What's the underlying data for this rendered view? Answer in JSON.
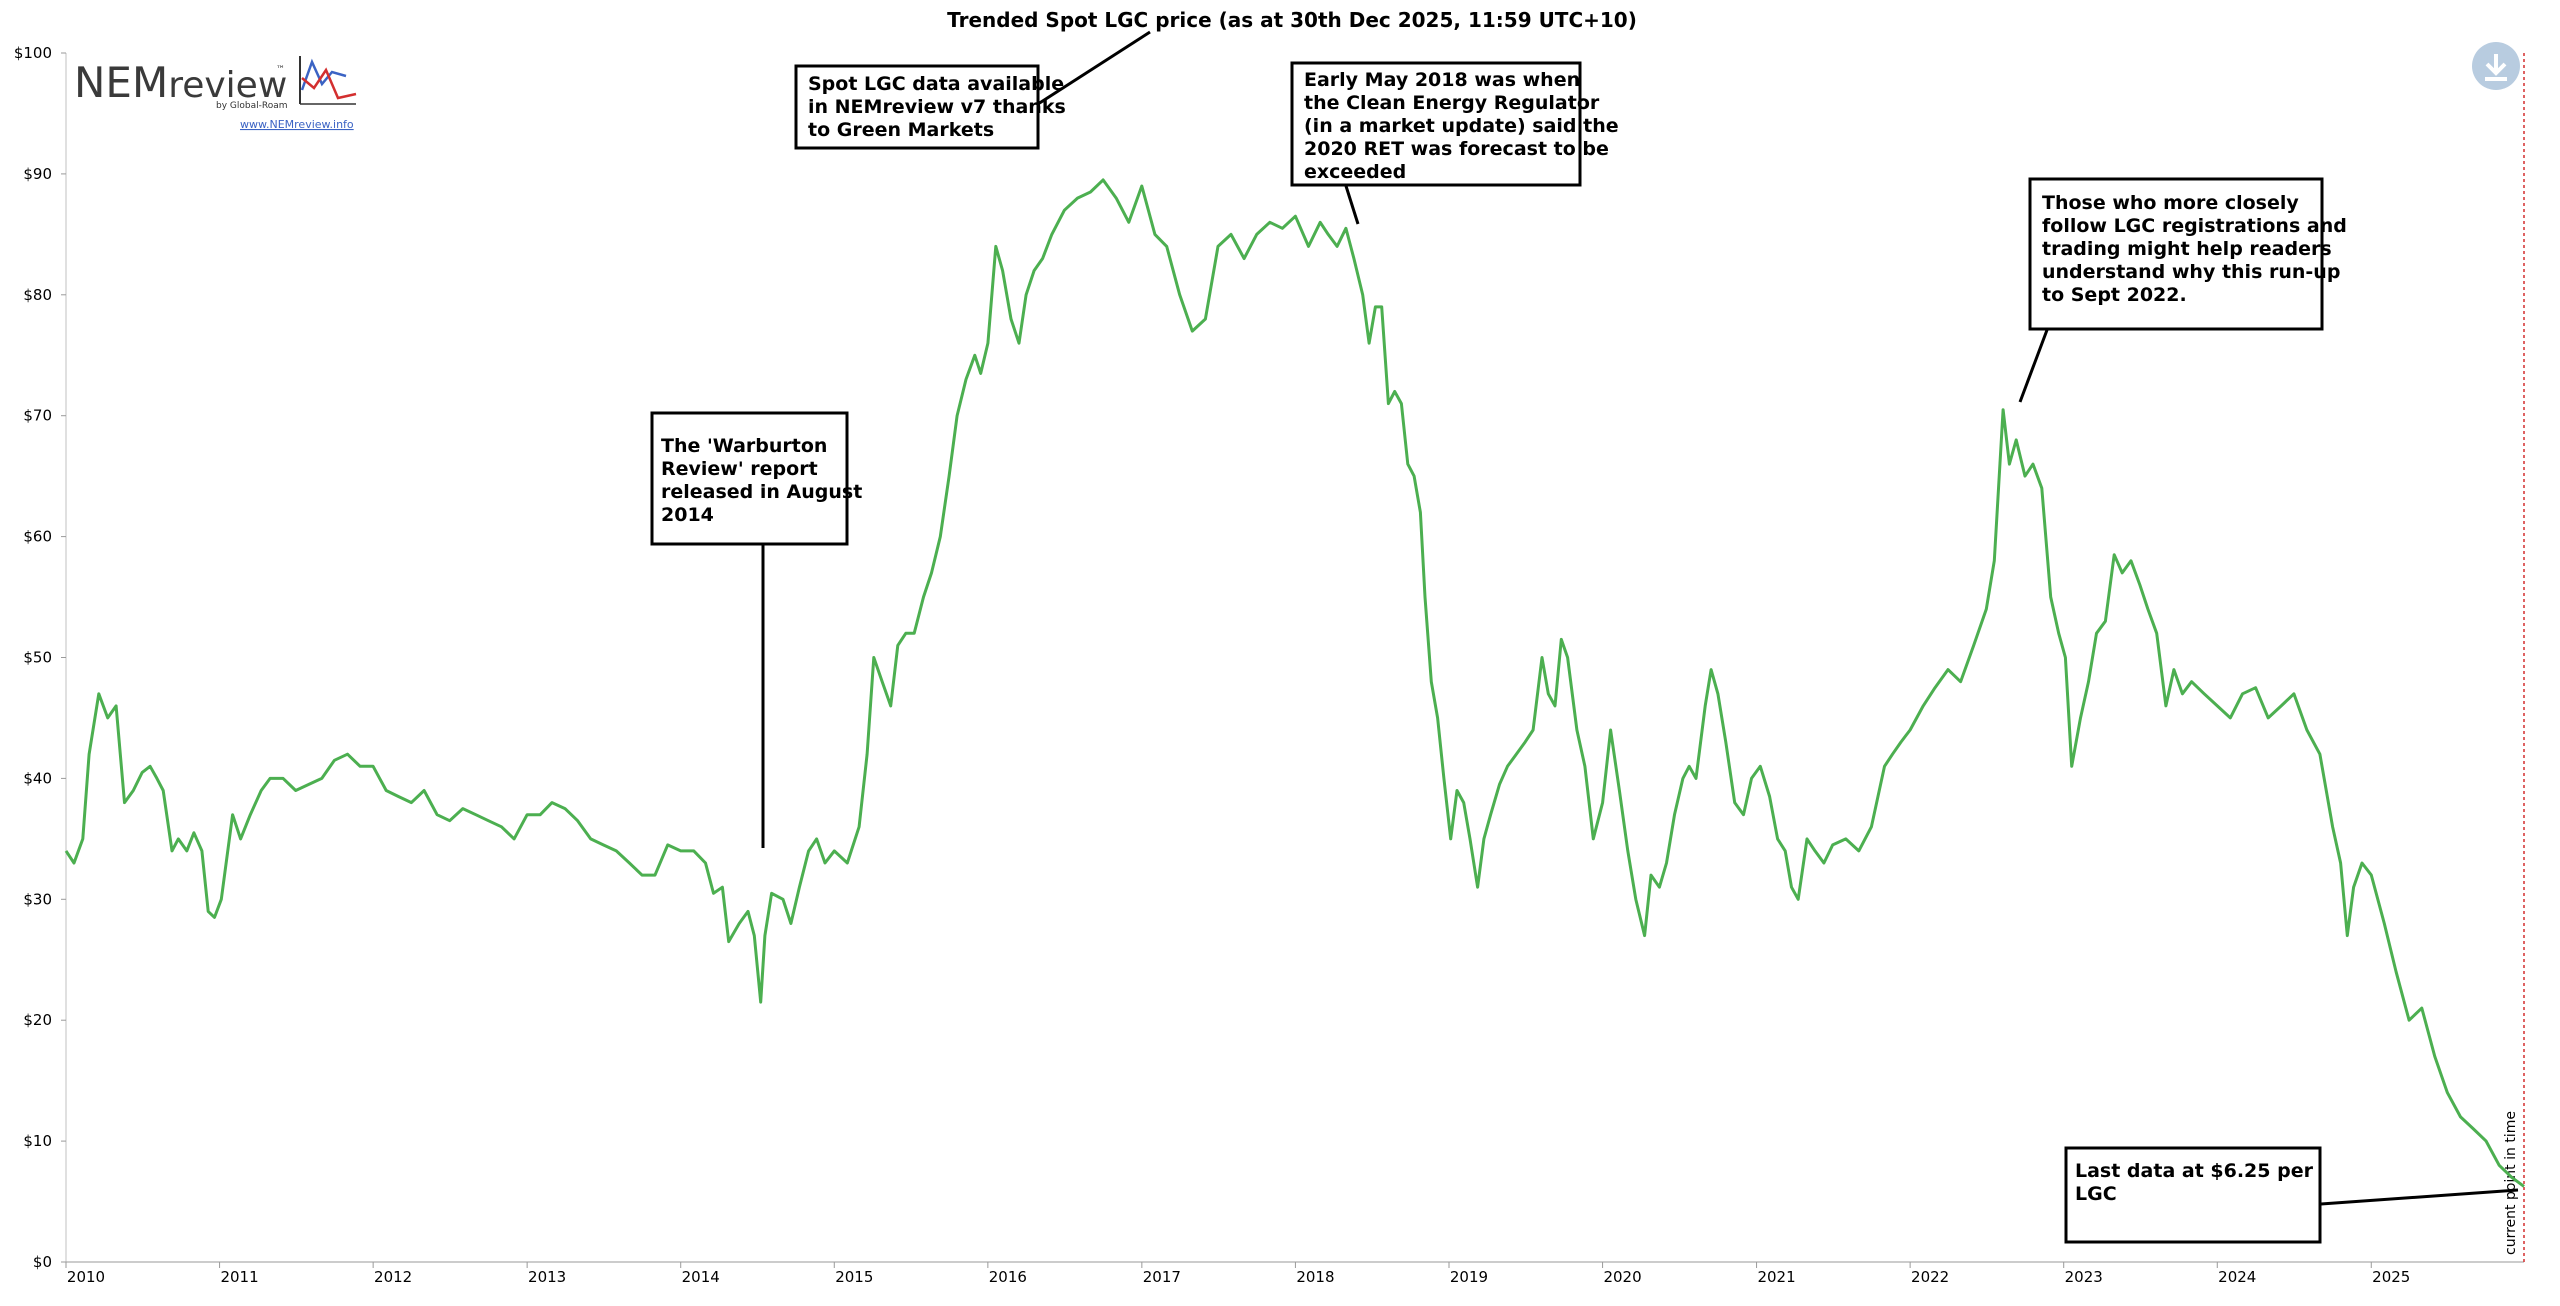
{
  "chart_data": {
    "type": "line",
    "title": "Trended Spot LGC price (as at 30th Dec 2025, 11:59 UTC+10)",
    "xlabel": "",
    "ylabel": "",
    "x_range": [
      "2010-01-01",
      "2025-12-30"
    ],
    "ylim": [
      0,
      100
    ],
    "y_ticks": [
      0,
      10,
      20,
      30,
      40,
      50,
      60,
      70,
      80,
      90,
      100
    ],
    "y_tick_labels": [
      "$0",
      "$10",
      "$20",
      "$30",
      "$40",
      "$50",
      "$60",
      "$70",
      "$80",
      "$90",
      "$100"
    ],
    "x_ticks": [
      "2010",
      "2011",
      "2012",
      "2013",
      "2014",
      "2015",
      "2016",
      "2017",
      "2018",
      "2019",
      "2020",
      "2021",
      "2022",
      "2023",
      "2024",
      "2025"
    ],
    "grid": false,
    "series": [
      {
        "color": "#4caf50",
        "points": [
          [
            "2010-01-01",
            34
          ],
          [
            "2010-01-20",
            33
          ],
          [
            "2010-02-10",
            35
          ],
          [
            "2010-02-25",
            42
          ],
          [
            "2010-03-20",
            47
          ],
          [
            "2010-04-10",
            45
          ],
          [
            "2010-04-30",
            46
          ],
          [
            "2010-05-20",
            38
          ],
          [
            "2010-06-10",
            39
          ],
          [
            "2010-07-01",
            40.5
          ],
          [
            "2010-07-20",
            41
          ],
          [
            "2010-08-05",
            40
          ],
          [
            "2010-08-20",
            39
          ],
          [
            "2010-09-10",
            34
          ],
          [
            "2010-09-25",
            35
          ],
          [
            "2010-10-15",
            34
          ],
          [
            "2010-11-01",
            35.5
          ],
          [
            "2010-11-20",
            34
          ],
          [
            "2010-12-05",
            29
          ],
          [
            "2010-12-20",
            28.5
          ],
          [
            "2011-01-05",
            30
          ],
          [
            "2011-02-01",
            37
          ],
          [
            "2011-02-20",
            35
          ],
          [
            "2011-03-15",
            37
          ],
          [
            "2011-04-10",
            39
          ],
          [
            "2011-05-01",
            40
          ],
          [
            "2011-06-01",
            40
          ],
          [
            "2011-07-01",
            39
          ],
          [
            "2011-08-01",
            39.5
          ],
          [
            "2011-09-01",
            40
          ],
          [
            "2011-10-01",
            41.5
          ],
          [
            "2011-11-01",
            42
          ],
          [
            "2011-12-01",
            41
          ],
          [
            "2012-01-01",
            41
          ],
          [
            "2012-02-01",
            39
          ],
          [
            "2012-03-01",
            38.5
          ],
          [
            "2012-04-01",
            38
          ],
          [
            "2012-05-01",
            39
          ],
          [
            "2012-06-01",
            37
          ],
          [
            "2012-07-01",
            36.5
          ],
          [
            "2012-08-01",
            37.5
          ],
          [
            "2012-09-01",
            37
          ],
          [
            "2012-10-01",
            36.5
          ],
          [
            "2012-11-01",
            36
          ],
          [
            "2012-12-01",
            35
          ],
          [
            "2013-01-01",
            37
          ],
          [
            "2013-02-01",
            37
          ],
          [
            "2013-03-01",
            38
          ],
          [
            "2013-04-01",
            37.5
          ],
          [
            "2013-05-01",
            36.5
          ],
          [
            "2013-06-01",
            35
          ],
          [
            "2013-07-01",
            34.5
          ],
          [
            "2013-08-01",
            34
          ],
          [
            "2013-09-01",
            33
          ],
          [
            "2013-10-01",
            32
          ],
          [
            "2013-11-01",
            32
          ],
          [
            "2013-12-01",
            34.5
          ],
          [
            "2014-01-01",
            34
          ],
          [
            "2014-02-01",
            34
          ],
          [
            "2014-03-01",
            33
          ],
          [
            "2014-03-20",
            30.5
          ],
          [
            "2014-04-10",
            31
          ],
          [
            "2014-04-25",
            26.5
          ],
          [
            "2014-05-20",
            28
          ],
          [
            "2014-06-10",
            29
          ],
          [
            "2014-06-25",
            27
          ],
          [
            "2014-07-10",
            21.5
          ],
          [
            "2014-07-20",
            27
          ],
          [
            "2014-08-05",
            30.5
          ],
          [
            "2014-09-01",
            30
          ],
          [
            "2014-09-20",
            28
          ],
          [
            "2014-10-10",
            31
          ],
          [
            "2014-11-01",
            34
          ],
          [
            "2014-11-20",
            35
          ],
          [
            "2014-12-10",
            33
          ],
          [
            "2015-01-01",
            34
          ],
          [
            "2015-02-01",
            33
          ],
          [
            "2015-03-01",
            36
          ],
          [
            "2015-03-20",
            42
          ],
          [
            "2015-04-05",
            50
          ],
          [
            "2015-04-25",
            48
          ],
          [
            "2015-05-15",
            46
          ],
          [
            "2015-06-01",
            51
          ],
          [
            "2015-06-20",
            52
          ],
          [
            "2015-07-10",
            52
          ],
          [
            "2015-08-01",
            55
          ],
          [
            "2015-08-20",
            57
          ],
          [
            "2015-09-10",
            60
          ],
          [
            "2015-10-01",
            65
          ],
          [
            "2015-10-20",
            70
          ],
          [
            "2015-11-10",
            73
          ],
          [
            "2015-12-01",
            75
          ],
          [
            "2015-12-15",
            73.5
          ],
          [
            "2016-01-01",
            76
          ],
          [
            "2016-01-20",
            84
          ],
          [
            "2016-02-05",
            82
          ],
          [
            "2016-02-25",
            78
          ],
          [
            "2016-03-15",
            76
          ],
          [
            "2016-04-01",
            80
          ],
          [
            "2016-04-20",
            82
          ],
          [
            "2016-05-10",
            83
          ],
          [
            "2016-06-01",
            85
          ],
          [
            "2016-07-01",
            87
          ],
          [
            "2016-08-01",
            88
          ],
          [
            "2016-09-01",
            88.5
          ],
          [
            "2016-10-01",
            89.5
          ],
          [
            "2016-11-01",
            88
          ],
          [
            "2016-12-01",
            86
          ],
          [
            "2017-01-01",
            89
          ],
          [
            "2017-02-01",
            85
          ],
          [
            "2017-03-01",
            84
          ],
          [
            "2017-04-01",
            80
          ],
          [
            "2017-05-01",
            77
          ],
          [
            "2017-06-01",
            78
          ],
          [
            "2017-07-01",
            84
          ],
          [
            "2017-08-01",
            85
          ],
          [
            "2017-09-01",
            83
          ],
          [
            "2017-10-01",
            85
          ],
          [
            "2017-11-01",
            86
          ],
          [
            "2017-12-01",
            85.5
          ],
          [
            "2018-01-01",
            86.5
          ],
          [
            "2018-02-01",
            84
          ],
          [
            "2018-03-01",
            86
          ],
          [
            "2018-03-20",
            85
          ],
          [
            "2018-04-10",
            84
          ],
          [
            "2018-05-01",
            85.5
          ],
          [
            "2018-05-20",
            83
          ],
          [
            "2018-06-10",
            80
          ],
          [
            "2018-06-25",
            76
          ],
          [
            "2018-07-10",
            79
          ],
          [
            "2018-07-25",
            79
          ],
          [
            "2018-08-10",
            71
          ],
          [
            "2018-08-25",
            72
          ],
          [
            "2018-09-10",
            71
          ],
          [
            "2018-09-25",
            66
          ],
          [
            "2018-10-10",
            65
          ],
          [
            "2018-10-25",
            62
          ],
          [
            "2018-11-05",
            55
          ],
          [
            "2018-11-20",
            48
          ],
          [
            "2018-12-05",
            45
          ],
          [
            "2018-12-20",
            40
          ],
          [
            "2019-01-05",
            35
          ],
          [
            "2019-01-20",
            39
          ],
          [
            "2019-02-05",
            38
          ],
          [
            "2019-02-20",
            35
          ],
          [
            "2019-03-10",
            31
          ],
          [
            "2019-03-25",
            35
          ],
          [
            "2019-04-10",
            37
          ],
          [
            "2019-05-01",
            39.5
          ],
          [
            "2019-05-20",
            41
          ],
          [
            "2019-06-10",
            42
          ],
          [
            "2019-07-01",
            43
          ],
          [
            "2019-07-20",
            44
          ],
          [
            "2019-08-10",
            50
          ],
          [
            "2019-08-25",
            47
          ],
          [
            "2019-09-10",
            46
          ],
          [
            "2019-09-25",
            51.5
          ],
          [
            "2019-10-10",
            50
          ],
          [
            "2019-11-01",
            44
          ],
          [
            "2019-11-20",
            41
          ],
          [
            "2019-12-10",
            35
          ],
          [
            "2020-01-01",
            38
          ],
          [
            "2020-01-20",
            44
          ],
          [
            "2020-02-10",
            39
          ],
          [
            "2020-03-01",
            34
          ],
          [
            "2020-03-20",
            30
          ],
          [
            "2020-04-10",
            27
          ],
          [
            "2020-04-25",
            32
          ],
          [
            "2020-05-15",
            31
          ],
          [
            "2020-06-01",
            33
          ],
          [
            "2020-06-20",
            37
          ],
          [
            "2020-07-10",
            40
          ],
          [
            "2020-07-25",
            41
          ],
          [
            "2020-08-10",
            40
          ],
          [
            "2020-09-01",
            46
          ],
          [
            "2020-09-15",
            49
          ],
          [
            "2020-10-01",
            47
          ],
          [
            "2020-10-20",
            43
          ],
          [
            "2020-11-10",
            38
          ],
          [
            "2020-12-01",
            37
          ],
          [
            "2020-12-20",
            40
          ],
          [
            "2021-01-10",
            41
          ],
          [
            "2021-02-01",
            38.5
          ],
          [
            "2021-02-20",
            35
          ],
          [
            "2021-03-10",
            34
          ],
          [
            "2021-03-25",
            31
          ],
          [
            "2021-04-10",
            30
          ],
          [
            "2021-05-01",
            35
          ],
          [
            "2021-05-20",
            34
          ],
          [
            "2021-06-10",
            33
          ],
          [
            "2021-07-01",
            34.5
          ],
          [
            "2021-08-01",
            35
          ],
          [
            "2021-09-01",
            34
          ],
          [
            "2021-10-01",
            36
          ],
          [
            "2021-11-01",
            41
          ],
          [
            "2021-11-20",
            42
          ],
          [
            "2021-12-10",
            43
          ],
          [
            "2022-01-01",
            44
          ],
          [
            "2022-02-01",
            46
          ],
          [
            "2022-03-01",
            47.5
          ],
          [
            "2022-04-01",
            49
          ],
          [
            "2022-05-01",
            48
          ],
          [
            "2022-06-01",
            51
          ],
          [
            "2022-07-01",
            54
          ],
          [
            "2022-07-20",
            58
          ],
          [
            "2022-08-10",
            70.5
          ],
          [
            "2022-08-25",
            66
          ],
          [
            "2022-09-10",
            68
          ],
          [
            "2022-10-01",
            65
          ],
          [
            "2022-10-20",
            66
          ],
          [
            "2022-11-10",
            64
          ],
          [
            "2022-12-01",
            55
          ],
          [
            "2022-12-20",
            52
          ],
          [
            "2023-01-05",
            50
          ],
          [
            "2023-01-20",
            41
          ],
          [
            "2023-02-10",
            45
          ],
          [
            "2023-03-01",
            48
          ],
          [
            "2023-03-20",
            52
          ],
          [
            "2023-04-10",
            53
          ],
          [
            "2023-05-01",
            58.5
          ],
          [
            "2023-05-20",
            57
          ],
          [
            "2023-06-10",
            58
          ],
          [
            "2023-07-01",
            56
          ],
          [
            "2023-07-20",
            54
          ],
          [
            "2023-08-10",
            52
          ],
          [
            "2023-09-01",
            46
          ],
          [
            "2023-09-20",
            49
          ],
          [
            "2023-10-10",
            47
          ],
          [
            "2023-11-01",
            48
          ],
          [
            "2023-12-01",
            47
          ],
          [
            "2024-01-01",
            46
          ],
          [
            "2024-02-01",
            45
          ],
          [
            "2024-03-01",
            47
          ],
          [
            "2024-04-01",
            47.5
          ],
          [
            "2024-05-01",
            45
          ],
          [
            "2024-06-01",
            46
          ],
          [
            "2024-07-01",
            47
          ],
          [
            "2024-08-01",
            44
          ],
          [
            "2024-09-01",
            42
          ],
          [
            "2024-10-01",
            36
          ],
          [
            "2024-10-20",
            33
          ],
          [
            "2024-11-05",
            27
          ],
          [
            "2024-11-20",
            31
          ],
          [
            "2024-12-10",
            33
          ],
          [
            "2025-01-01",
            32
          ],
          [
            "2025-02-01",
            28
          ],
          [
            "2025-03-01",
            24
          ],
          [
            "2025-04-01",
            20
          ],
          [
            "2025-05-01",
            21
          ],
          [
            "2025-06-01",
            17
          ],
          [
            "2025-07-01",
            14
          ],
          [
            "2025-08-01",
            12
          ],
          [
            "2025-09-01",
            11
          ],
          [
            "2025-10-01",
            10
          ],
          [
            "2025-11-01",
            8
          ],
          [
            "2025-12-01",
            7
          ],
          [
            "2025-12-30",
            6.25
          ]
        ]
      }
    ],
    "annotations": [
      {
        "lines": [
          "Spot LGC data available",
          "in NEMreview v7 thanks",
          "to Green Markets"
        ]
      },
      {
        "lines": [
          "Early May 2018 was when",
          "the Clean Energy Regulator",
          "(in a market update) said the",
          "2020 RET was forecast to be",
          "exceeded"
        ]
      },
      {
        "lines": [
          "The 'Warburton",
          "Review' report",
          "released in August",
          "2014"
        ]
      },
      {
        "lines": [
          "Those who more closely",
          "follow LGC registrations and",
          "trading might help readers",
          "understand why this run-up",
          "to Sept 2022."
        ]
      },
      {
        "lines": [
          "Last data at $6.25 per",
          "LGC"
        ]
      }
    ],
    "current_marker_label": "current point in time"
  },
  "logo": {
    "name_part1": "NEM",
    "name_part2": "review",
    "trademark": "™",
    "byline": "by Global-Roam",
    "link": "www.NEMreview.info"
  },
  "toolbar": {
    "download_icon": "download-icon"
  },
  "colors": {
    "line": "#4caf50",
    "current_marker": "#d32f2f",
    "download_button": "#b8cce0"
  }
}
